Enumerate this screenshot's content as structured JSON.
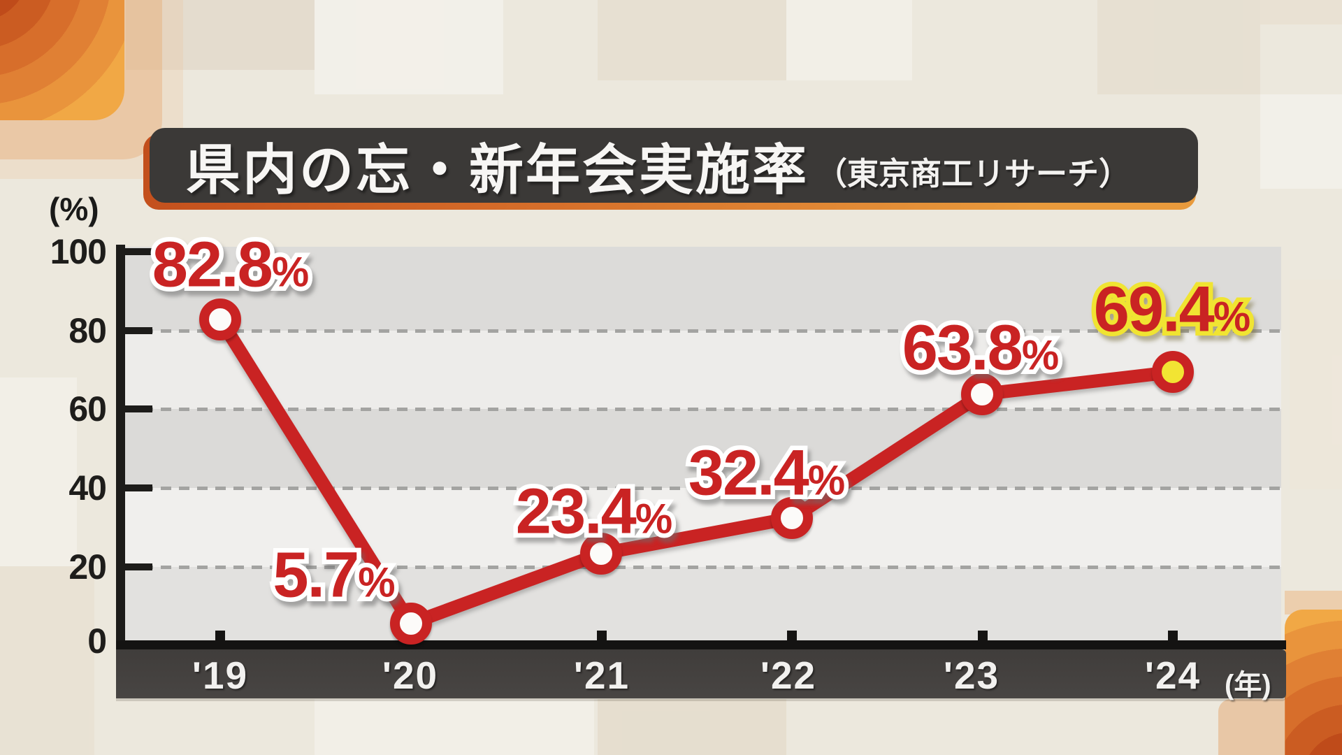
{
  "header": {
    "title": "県内の忘・新年会実施率",
    "source": "（東京商工リサーチ）"
  },
  "axis": {
    "y_unit": "(%)",
    "x_unit": "(年)",
    "y_ticks": [
      "100",
      "80",
      "60",
      "40",
      "20",
      "0"
    ],
    "x_labels": [
      "'19",
      "'20",
      "'21",
      "'22",
      "'23",
      "'24"
    ]
  },
  "chart_data": {
    "type": "line",
    "title": "県内の忘・新年会実施率（東京商工リサーチ）",
    "source_label": "東京商工リサーチ",
    "x": [
      "'19",
      "'20",
      "'21",
      "'22",
      "'23",
      "'24"
    ],
    "values": [
      82.8,
      5.7,
      23.4,
      32.4,
      63.8,
      69.4
    ],
    "point_labels": [
      "82.8",
      "5.7",
      "23.4",
      "32.4",
      "63.8",
      "69.4"
    ],
    "percent_sign": "%",
    "xlabel": "年",
    "ylabel": "%",
    "ylim": [
      0,
      100
    ],
    "y_tick_interval": 20,
    "grid": "horizontal dashed lines at 20, 40, 60, 80",
    "legend": "none",
    "line_color": "#c92323",
    "point_fill": "#fcfbf9",
    "highlight_point_fill": "#f2e433",
    "label_color": "#c92323",
    "label_outline": "#ffffff",
    "highlight_label_outline": "#f0e432",
    "title_bar_bg": "#3b3937",
    "title_bar_accent": "#d46a28"
  }
}
